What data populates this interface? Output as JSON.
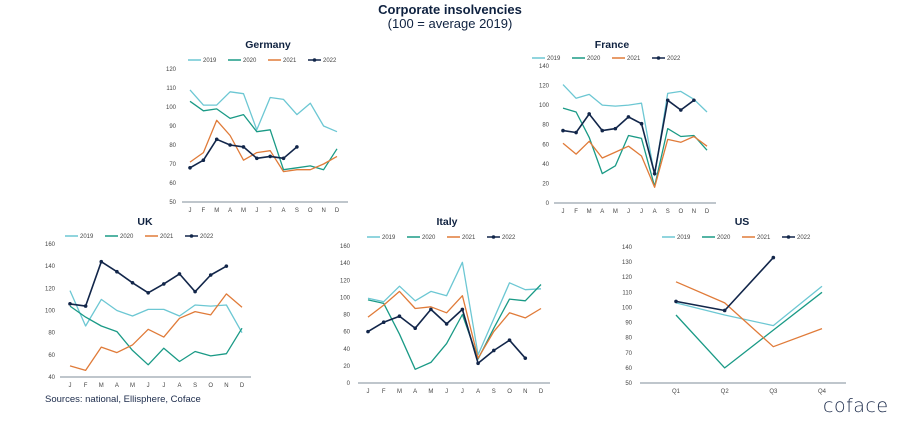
{
  "header": {
    "title": "Corporate insolvencies",
    "subtitle": "(100 = average 2019)"
  },
  "footer": {
    "sources": "Sources: national, Ellisphere, Coface",
    "logo": "coface"
  },
  "colors": {
    "2019": "#6cc7d3",
    "2020": "#1a9a86",
    "2021": "#e07b39",
    "2022": "#12264a",
    "axis": "#7f8c99",
    "tick_text": "#444444",
    "title": "#0f2240"
  },
  "chart_data": [
    {
      "id": "germany",
      "type": "line",
      "title": "Germany",
      "categories": [
        "J",
        "F",
        "M",
        "A",
        "M",
        "J",
        "J",
        "A",
        "S",
        "O",
        "N",
        "D"
      ],
      "ylim": [
        50,
        120
      ],
      "yticks": [
        50,
        60,
        70,
        80,
        90,
        100,
        110,
        120
      ],
      "legend": "top",
      "series": [
        {
          "name": "2019",
          "values": [
            109,
            101,
            101,
            108,
            107,
            88,
            105,
            104,
            96,
            102,
            90,
            87
          ]
        },
        {
          "name": "2020",
          "values": [
            103,
            98,
            99,
            94,
            96,
            87,
            88,
            67,
            68,
            69,
            67,
            78
          ]
        },
        {
          "name": "2021",
          "values": [
            71,
            76,
            93,
            85,
            72,
            76,
            77,
            66,
            67,
            67,
            70,
            74
          ]
        },
        {
          "name": "2022",
          "values": [
            68,
            72,
            83,
            80,
            79,
            73,
            74,
            73,
            79
          ],
          "markers": true
        }
      ]
    },
    {
      "id": "france",
      "type": "line",
      "title": "France",
      "categories": [
        "J",
        "F",
        "M",
        "A",
        "M",
        "J",
        "J",
        "A",
        "S",
        "O",
        "N",
        "D"
      ],
      "ylim": [
        0,
        140
      ],
      "yticks": [
        0,
        20,
        40,
        60,
        80,
        100,
        120,
        140
      ],
      "legend": "top",
      "series": [
        {
          "name": "2019",
          "values": [
            121,
            107,
            111,
            100,
            99,
            100,
            102,
            28,
            112,
            114,
            106,
            93
          ]
        },
        {
          "name": "2020",
          "values": [
            97,
            93,
            67,
            30,
            38,
            69,
            66,
            17,
            76,
            68,
            69,
            54
          ]
        },
        {
          "name": "2021",
          "values": [
            61,
            50,
            63,
            46,
            52,
            58,
            48,
            16,
            65,
            62,
            68,
            58
          ]
        },
        {
          "name": "2022",
          "values": [
            74,
            72,
            91,
            74,
            76,
            88,
            81,
            30,
            105,
            95,
            105
          ],
          "markers": true
        }
      ]
    },
    {
      "id": "uk",
      "type": "line",
      "title": "UK",
      "categories": [
        "J",
        "F",
        "M",
        "A",
        "M",
        "J",
        "J",
        "A",
        "S",
        "O",
        "N",
        "D"
      ],
      "ylim": [
        40,
        160
      ],
      "yticks": [
        40,
        60,
        80,
        100,
        120,
        140,
        160
      ],
      "legend": "top",
      "series": [
        {
          "name": "2019",
          "values": [
            118,
            86,
            110,
            100,
            95,
            101,
            101,
            95,
            105,
            104,
            105,
            80
          ]
        },
        {
          "name": "2020",
          "values": [
            104,
            94,
            86,
            81,
            64,
            51,
            66,
            54,
            63,
            59,
            61,
            84
          ]
        },
        {
          "name": "2021",
          "values": [
            50,
            46,
            67,
            62,
            69,
            83,
            76,
            93,
            99,
            96,
            115,
            103
          ]
        },
        {
          "name": "2022",
          "values": [
            106,
            104,
            144,
            135,
            125,
            116,
            124,
            133,
            117,
            132,
            140
          ],
          "markers": true
        }
      ]
    },
    {
      "id": "italy",
      "type": "line",
      "title": "Italy",
      "categories": [
        "J",
        "F",
        "M",
        "A",
        "M",
        "J",
        "J",
        "A",
        "S",
        "O",
        "N",
        "D"
      ],
      "ylim": [
        0,
        160
      ],
      "yticks": [
        0,
        20,
        40,
        60,
        80,
        100,
        120,
        140,
        160
      ],
      "legend": "top",
      "series": [
        {
          "name": "2019",
          "values": [
            99,
            95,
            113,
            96,
            107,
            102,
            141,
            33,
            75,
            117,
            109,
            110
          ]
        },
        {
          "name": "2020",
          "values": [
            97,
            93,
            57,
            16,
            24,
            46,
            80,
            28,
            64,
            98,
            96,
            115
          ]
        },
        {
          "name": "2021",
          "values": [
            77,
            91,
            107,
            87,
            89,
            82,
            102,
            29,
            60,
            82,
            76,
            87
          ]
        },
        {
          "name": "2022",
          "values": [
            60,
            71,
            78,
            64,
            86,
            69,
            86,
            23,
            38,
            50,
            29
          ],
          "markers": true
        }
      ]
    },
    {
      "id": "us",
      "type": "line",
      "title": "US",
      "categories": [
        "Q1",
        "Q2",
        "Q3",
        "Q4"
      ],
      "ylim": [
        50,
        140
      ],
      "yticks": [
        50,
        60,
        70,
        80,
        90,
        100,
        110,
        120,
        130,
        140
      ],
      "legend": "top",
      "series": [
        {
          "name": "2019",
          "values": [
            103,
            95,
            88,
            114
          ]
        },
        {
          "name": "2020",
          "values": [
            95,
            60,
            85,
            110
          ]
        },
        {
          "name": "2021",
          "values": [
            117,
            103,
            74,
            86
          ]
        },
        {
          "name": "2022",
          "values": [
            104,
            98,
            133
          ],
          "markers": true
        }
      ]
    }
  ]
}
